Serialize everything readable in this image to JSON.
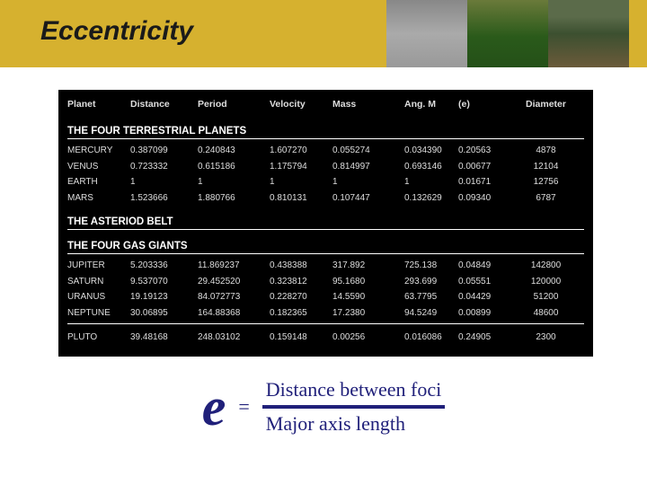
{
  "title": "Eccentricity",
  "header_colors": {
    "band": "#d6b12f",
    "text": "#1a1a1a"
  },
  "table": {
    "background": "#000000",
    "text_color": "#dedede",
    "header_fontsize": 10.5,
    "row_fontsize": 10,
    "columns": [
      "Planet",
      "Distance",
      "Period",
      "Velocity",
      "Mass",
      "Ang. M",
      "(e)",
      "Diameter"
    ],
    "sections": [
      {
        "label": "THE FOUR TERRESTRIAL PLANETS",
        "rows": [
          [
            "MERCURY",
            "0.387099",
            "0.240843",
            "1.607270",
            "0.055274",
            "0.034390",
            "0.20563",
            "4878"
          ],
          [
            "VENUS",
            "0.723332",
            "0.615186",
            "1.175794",
            "0.814997",
            "0.693146",
            "0.00677",
            "12104"
          ],
          [
            "EARTH",
            "1",
            "1",
            "1",
            "1",
            "1",
            "0.01671",
            "12756"
          ],
          [
            "MARS",
            "1.523666",
            "1.880766",
            "0.810131",
            "0.107447",
            "0.132629",
            "0.09340",
            "6787"
          ]
        ]
      },
      {
        "label": "THE ASTERIOD BELT",
        "rows": []
      },
      {
        "label": "THE FOUR GAS GIANTS",
        "rows": [
          [
            "JUPITER",
            "5.203336",
            "11.869237",
            "0.438388",
            "317.892",
            "725.138",
            "0.04849",
            "142800"
          ],
          [
            "SATURN",
            "9.537070",
            "29.452520",
            "0.323812",
            "95.1680",
            "293.699",
            "0.05551",
            "120000"
          ],
          [
            "URANUS",
            "19.19123",
            "84.072773",
            "0.228270",
            "14.5590",
            "63.7795",
            "0.04429",
            "51200"
          ],
          [
            "NEPTUNE",
            "30.06895",
            "164.88368",
            "0.182365",
            "17.2380",
            "94.5249",
            "0.00899",
            "48600"
          ]
        ]
      },
      {
        "label": "",
        "rows": [
          [
            "PLUTO",
            "39.48168",
            "248.03102",
            "0.159148",
            "0.00256",
            "0.016086",
            "0.24905",
            "2300"
          ]
        ]
      }
    ]
  },
  "formula": {
    "lhs": "e",
    "eq": "=",
    "numerator": "Distance between foci",
    "denominator": "Major axis length",
    "color": "#20207a",
    "e_fontsize": 60,
    "frac_fontsize": 22
  }
}
